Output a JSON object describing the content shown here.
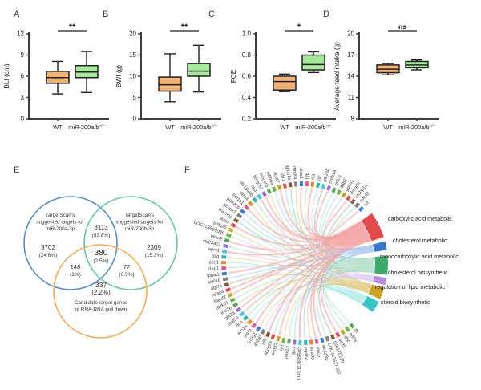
{
  "chart_data": [
    {
      "type": "box",
      "panel": "A",
      "ylabel": "BLI (cm)",
      "ylim": [
        0,
        12
      ],
      "yticks": [
        "0",
        "3",
        "6",
        "9",
        "12"
      ],
      "significance": "**",
      "groups": [
        {
          "label": "WT",
          "color": "#F0B176",
          "whislo": 3.5,
          "q1": 5.0,
          "median": 5.8,
          "q3": 6.7,
          "whishi": 8.1
        },
        {
          "label": "miR-200a/b",
          "label_sup": "−/−",
          "color": "#A7E99C",
          "whislo": 3.7,
          "q1": 5.8,
          "median": 6.6,
          "q3": 7.5,
          "whishi": 9.5
        }
      ]
    },
    {
      "type": "box",
      "panel": "B",
      "ylabel": "BWI (g)",
      "ylim": [
        0,
        20
      ],
      "yticks": [
        "0",
        "5",
        "10",
        "15",
        "20"
      ],
      "significance": "**",
      "groups": [
        {
          "label": "WT",
          "color": "#F0B176",
          "whislo": 4.0,
          "q1": 6.5,
          "median": 8.0,
          "q3": 9.8,
          "whishi": 15.3
        },
        {
          "label": "miR-200a/b",
          "label_sup": "−/−",
          "color": "#A7E99C",
          "whislo": 6.3,
          "q1": 10.0,
          "median": 11.2,
          "q3": 13.0,
          "whishi": 17.3
        }
      ]
    },
    {
      "type": "box",
      "panel": "C",
      "ylabel": "FCE",
      "ylim": [
        0.2,
        1.0
      ],
      "yticks": [
        "0.2",
        "0.4",
        "0.6",
        "0.8",
        "1.0"
      ],
      "significance": "*",
      "groups": [
        {
          "label": "WT",
          "color": "#F0B176",
          "whislo": 0.455,
          "q1": 0.47,
          "median": 0.55,
          "q3": 0.6,
          "whishi": 0.62
        },
        {
          "label": "miR-200a/b",
          "label_sup": "−/−",
          "color": "#A7E99C",
          "whislo": 0.635,
          "q1": 0.66,
          "median": 0.71,
          "q3": 0.8,
          "whishi": 0.83
        }
      ]
    },
    {
      "type": "box",
      "panel": "D",
      "ylabel": "Average feed intake (g)",
      "ylim": [
        8,
        20
      ],
      "yticks": [
        "8",
        "11",
        "14",
        "17",
        "20"
      ],
      "significance": "ns",
      "groups": [
        {
          "label": "WT",
          "color": "#F0B176",
          "whislo": 14.2,
          "q1": 14.5,
          "median": 15.0,
          "q3": 15.6,
          "whishi": 15.8
        },
        {
          "label": "miR-200a/b",
          "label_sup": "−/−",
          "color": "#A7E99C",
          "whislo": 14.9,
          "q1": 15.2,
          "median": 15.6,
          "q3": 16.1,
          "whishi": 16.3
        }
      ]
    },
    {
      "type": "venn",
      "panel": "E",
      "sets": [
        {
          "title_lines": [
            "TargetScan's",
            "suggested targets for",
            "miR-200a-3p"
          ],
          "color": "#5B8EC5"
        },
        {
          "title_lines": [
            "TargetScan's",
            "suggested targets for",
            "miR-200b-3p"
          ],
          "color": "#6CC5A1"
        },
        {
          "title_lines": [
            "Candidate target genes",
            "of RNA-RNA pull down"
          ],
          "color": "#EFAE5C"
        }
      ],
      "regions": {
        "a_only": {
          "n": "3702",
          "pct": "(24.6%)"
        },
        "ab": {
          "n": "8113",
          "pct": "(53.8%)"
        },
        "b_only": {
          "n": "2309",
          "pct": "(15.3%)"
        },
        "abc": {
          "n": "380",
          "pct": "(2.5%)"
        },
        "ac": {
          "n": "148",
          "pct": "(1%)"
        },
        "bc": {
          "n": "77",
          "pct": "(0.5%)"
        },
        "c_only": {
          "n": "337",
          "pct": "(2.2%)"
        }
      }
    },
    {
      "type": "chord",
      "panel": "F",
      "categories": [
        {
          "label": "carboxylic acid metabolic",
          "color": "#E14B4B",
          "light": "#F3A0A0"
        },
        {
          "label": "cholesterol metabolic",
          "color": "#3B76C8",
          "light": "#A9C4EC"
        },
        {
          "label": "monocarboxylic acid metabolic",
          "color": "#3FA96D",
          "light": "#A5D9BC"
        },
        {
          "label": "cholesterol biosynthetic",
          "color": "#B48FE0",
          "light": "#D9C6F2"
        },
        {
          "label": "regulation of lipid metabolic",
          "color": "#C9A227",
          "light": "#E0CB82"
        },
        {
          "label": "steroid biosynthetic",
          "color": "#38C6C9",
          "light": "#9FE4E5"
        }
      ],
      "genes": [
        "srf",
        "cdc42",
        "crabp1a",
        "dmgdh",
        "golm1",
        "dab2",
        "nr3c1",
        "creb1a",
        "ptk2bb",
        "lsr",
        "lss",
        "hfb",
        "alas1",
        "mtmr4",
        "igfbp1a",
        "fdx1",
        "acat2",
        "hdlbpa",
        "hmgcrb",
        "hmgcs1",
        "fasn",
        "slc16a9b",
        "dda4",
        "eef1e1",
        "pdha1b",
        "pcyox1",
        "memo1",
        "aass",
        "pabpl5",
        "LOC113660036",
        "elovl2",
        "slc25a21",
        "eprs1",
        "bsg",
        "aco1",
        "dag1",
        "lpgat1",
        "acsl1b",
        "atp7a",
        "hdac4",
        "hacd2",
        "dhtkd1",
        "ero1b",
        "got2a",
        "stat5b",
        "dcn",
        "ero1a",
        "insrb",
        "insig1",
        "aldob",
        "tdh",
        "abcg2a",
        "srebf2",
        "iyd",
        "pex13",
        "qpct",
        "LOC113639502",
        "ogdha",
        "acads",
        "smc5",
        "slc1a3a",
        "LOC113637322",
        "hsd17b12b",
        "scd5",
        "dbt",
        "atf6a",
        "fh"
      ]
    }
  ]
}
